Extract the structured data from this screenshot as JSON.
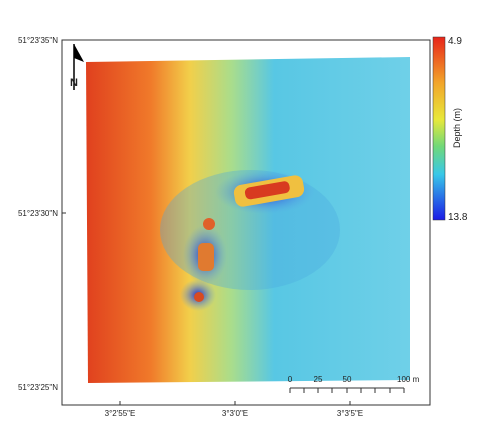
{
  "map": {
    "north_label": "N",
    "lat_labels": [
      "51°23'35\"N",
      "51°23'30\"N",
      "51°23'25\"N"
    ],
    "lon_labels": [
      "3°2'55\"E",
      "3°3'0\"E",
      "3°3'5\"E"
    ],
    "colorbar": {
      "title": "Depth (m)",
      "top": 4.9,
      "bottom": 13.8
    },
    "scalebar": {
      "labels": [
        "0",
        "25",
        "50",
        "100 m"
      ]
    }
  }
}
